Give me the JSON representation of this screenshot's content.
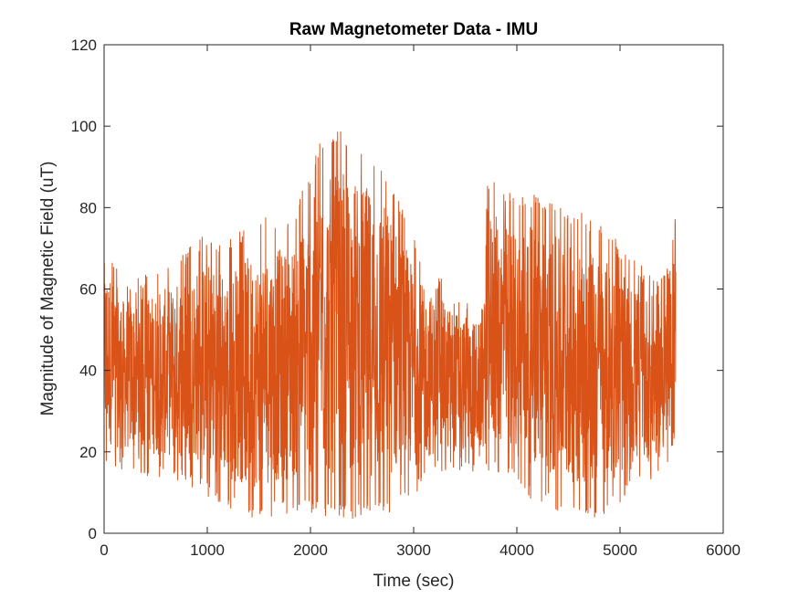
{
  "chart_data": {
    "type": "line",
    "title": "Raw Magnetometer Data - IMU",
    "xlabel": "Time (sec)",
    "ylabel": "Magnitude of Magnetic Field (uT)",
    "xlim": [
      0,
      6000
    ],
    "ylim": [
      0,
      120
    ],
    "xticks": [
      "0",
      "1000",
      "2000",
      "3000",
      "4000",
      "5000",
      "6000"
    ],
    "yticks": [
      "0",
      "20",
      "40",
      "60",
      "80",
      "100",
      "120"
    ],
    "grid": false,
    "legend": "none",
    "series": [
      {
        "color": "#D95319",
        "x_range": [
          0,
          5540
        ],
        "envelope": [
          {
            "x": 0,
            "min": 16,
            "max": 73
          },
          {
            "x": 200,
            "min": 15,
            "max": 62
          },
          {
            "x": 400,
            "min": 14,
            "max": 64
          },
          {
            "x": 600,
            "min": 13,
            "max": 66
          },
          {
            "x": 800,
            "min": 12,
            "max": 70
          },
          {
            "x": 1000,
            "min": 9,
            "max": 74
          },
          {
            "x": 1200,
            "min": 6,
            "max": 72
          },
          {
            "x": 1400,
            "min": 3,
            "max": 76
          },
          {
            "x": 1600,
            "min": 4,
            "max": 78
          },
          {
            "x": 1800,
            "min": 5,
            "max": 78
          },
          {
            "x": 1950,
            "min": 5,
            "max": 86
          },
          {
            "x": 2100,
            "min": 4,
            "max": 97
          },
          {
            "x": 2300,
            "min": 3,
            "max": 99
          },
          {
            "x": 2500,
            "min": 4,
            "max": 96
          },
          {
            "x": 2700,
            "min": 4,
            "max": 92
          },
          {
            "x": 2900,
            "min": 6,
            "max": 80
          },
          {
            "x": 3100,
            "min": 12,
            "max": 66
          },
          {
            "x": 3300,
            "min": 15,
            "max": 62
          },
          {
            "x": 3500,
            "min": 15,
            "max": 58
          },
          {
            "x": 3680,
            "min": 15,
            "max": 56
          },
          {
            "x": 3700,
            "min": 15,
            "max": 88
          },
          {
            "x": 3900,
            "min": 13,
            "max": 84
          },
          {
            "x": 4100,
            "min": 9,
            "max": 84
          },
          {
            "x": 4300,
            "min": 6,
            "max": 82
          },
          {
            "x": 4500,
            "min": 4,
            "max": 80
          },
          {
            "x": 4700,
            "min": 3,
            "max": 78
          },
          {
            "x": 4900,
            "min": 5,
            "max": 74
          },
          {
            "x": 5100,
            "min": 9,
            "max": 68
          },
          {
            "x": 5300,
            "min": 12,
            "max": 64
          },
          {
            "x": 5500,
            "min": 14,
            "max": 66
          },
          {
            "x": 5530,
            "min": 14,
            "max": 90
          }
        ]
      }
    ]
  }
}
